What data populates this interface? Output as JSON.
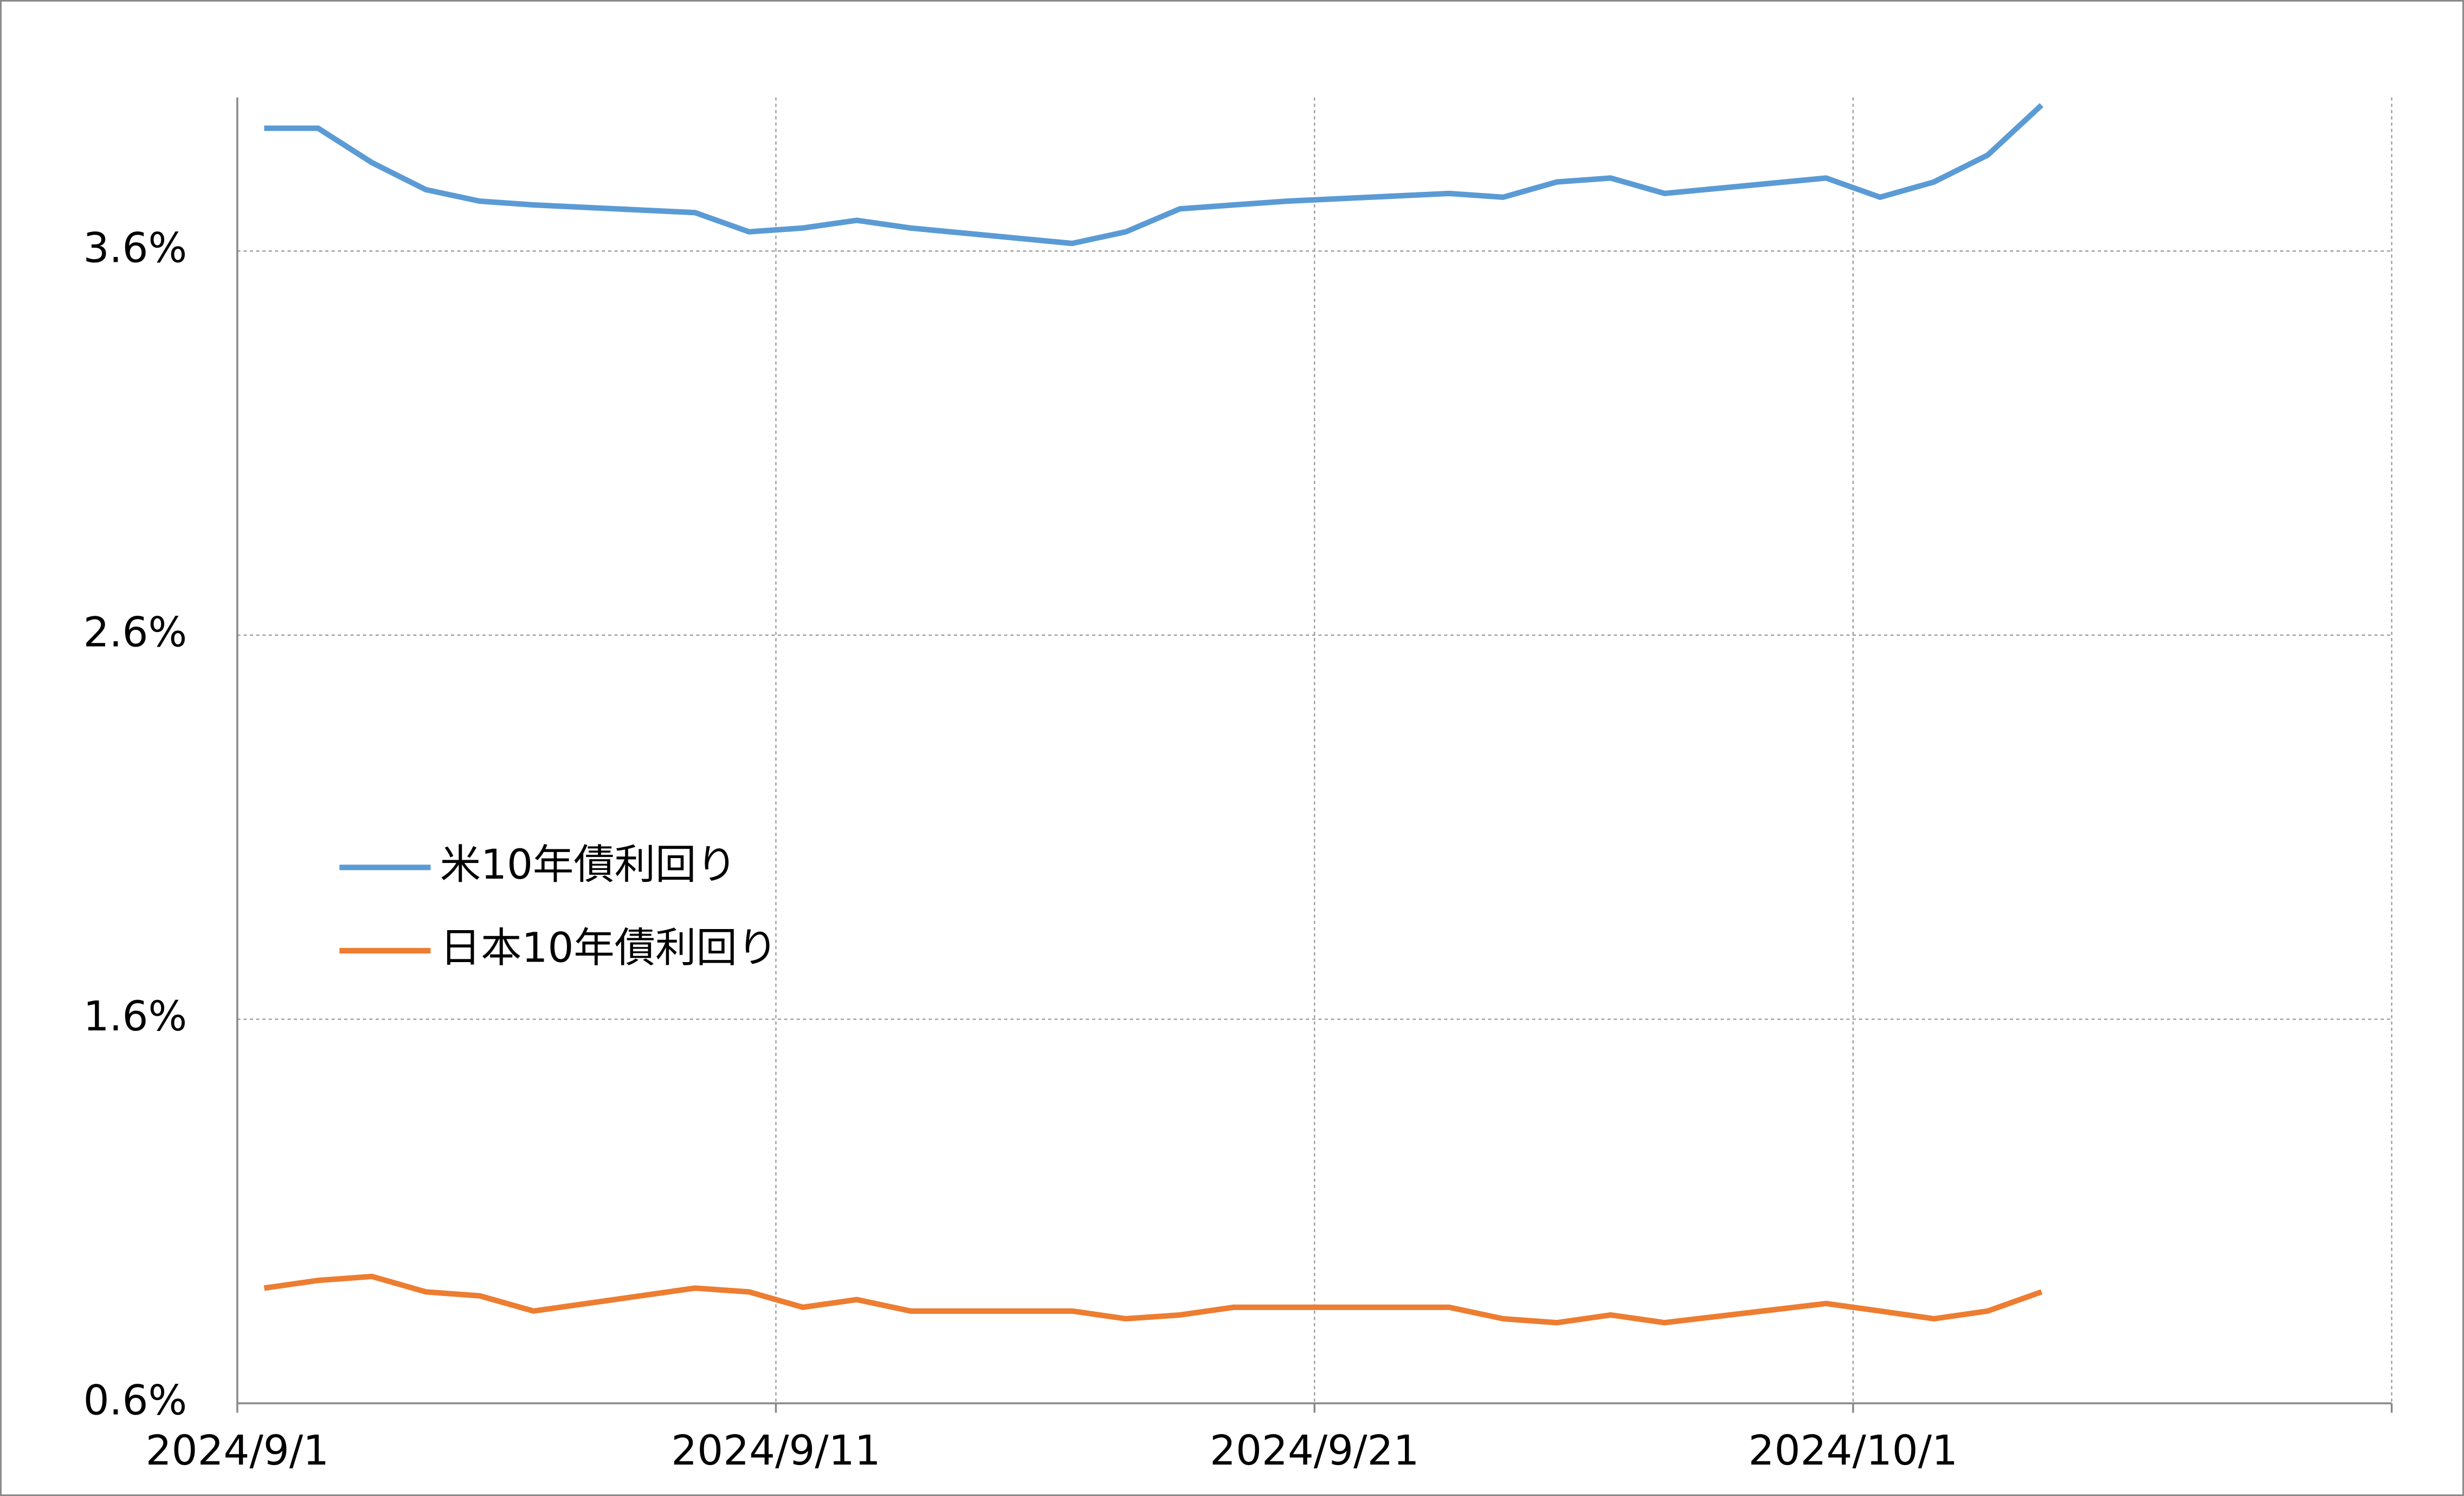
{
  "chart_data": {
    "type": "line",
    "x": [
      "2024/9/1",
      "2024/9/2",
      "2024/9/3",
      "2024/9/4",
      "2024/9/5",
      "2024/9/6",
      "2024/9/9",
      "2024/9/10",
      "2024/9/11",
      "2024/9/12",
      "2024/9/13",
      "2024/9/16",
      "2024/9/17",
      "2024/9/18",
      "2024/9/19",
      "2024/9/20",
      "2024/9/23",
      "2024/9/24",
      "2024/9/25",
      "2024/9/26",
      "2024/9/27",
      "2024/9/30",
      "2024/10/1",
      "2024/10/2",
      "2024/10/3",
      "2024/10/4"
    ],
    "series": [
      {
        "name": "米10年債利回り",
        "color": "#5b9bd5",
        "values": [
          3.92,
          3.92,
          3.83,
          3.76,
          3.73,
          3.72,
          3.7,
          3.65,
          3.66,
          3.68,
          3.66,
          3.62,
          3.65,
          3.71,
          3.72,
          3.73,
          3.75,
          3.74,
          3.78,
          3.79,
          3.75,
          3.79,
          3.74,
          3.78,
          3.85,
          3.98
        ]
      },
      {
        "name": "日本10年債利回り",
        "color": "#ed7d31",
        "values": [
          0.9,
          0.92,
          0.93,
          0.89,
          0.88,
          0.84,
          0.9,
          0.89,
          0.85,
          0.87,
          0.84,
          0.84,
          0.82,
          0.83,
          0.85,
          0.85,
          0.85,
          0.82,
          0.81,
          0.83,
          0.81,
          0.86,
          0.84,
          0.82,
          0.84,
          0.89
        ]
      }
    ],
    "xlim": [
      "2024/9/1",
      "2024/10/11"
    ],
    "xticks": [
      "2024/9/1",
      "2024/9/11",
      "2024/9/21",
      "2024/10/1"
    ],
    "ylim": [
      0.6,
      4.0
    ],
    "yticks": [
      {
        "value": 0.6,
        "label": "0.6%"
      },
      {
        "value": 1.6,
        "label": "1.6%"
      },
      {
        "value": 2.6,
        "label": "2.6%"
      },
      {
        "value": 3.6,
        "label": "3.6%"
      }
    ],
    "grid": true,
    "legend": "left"
  }
}
